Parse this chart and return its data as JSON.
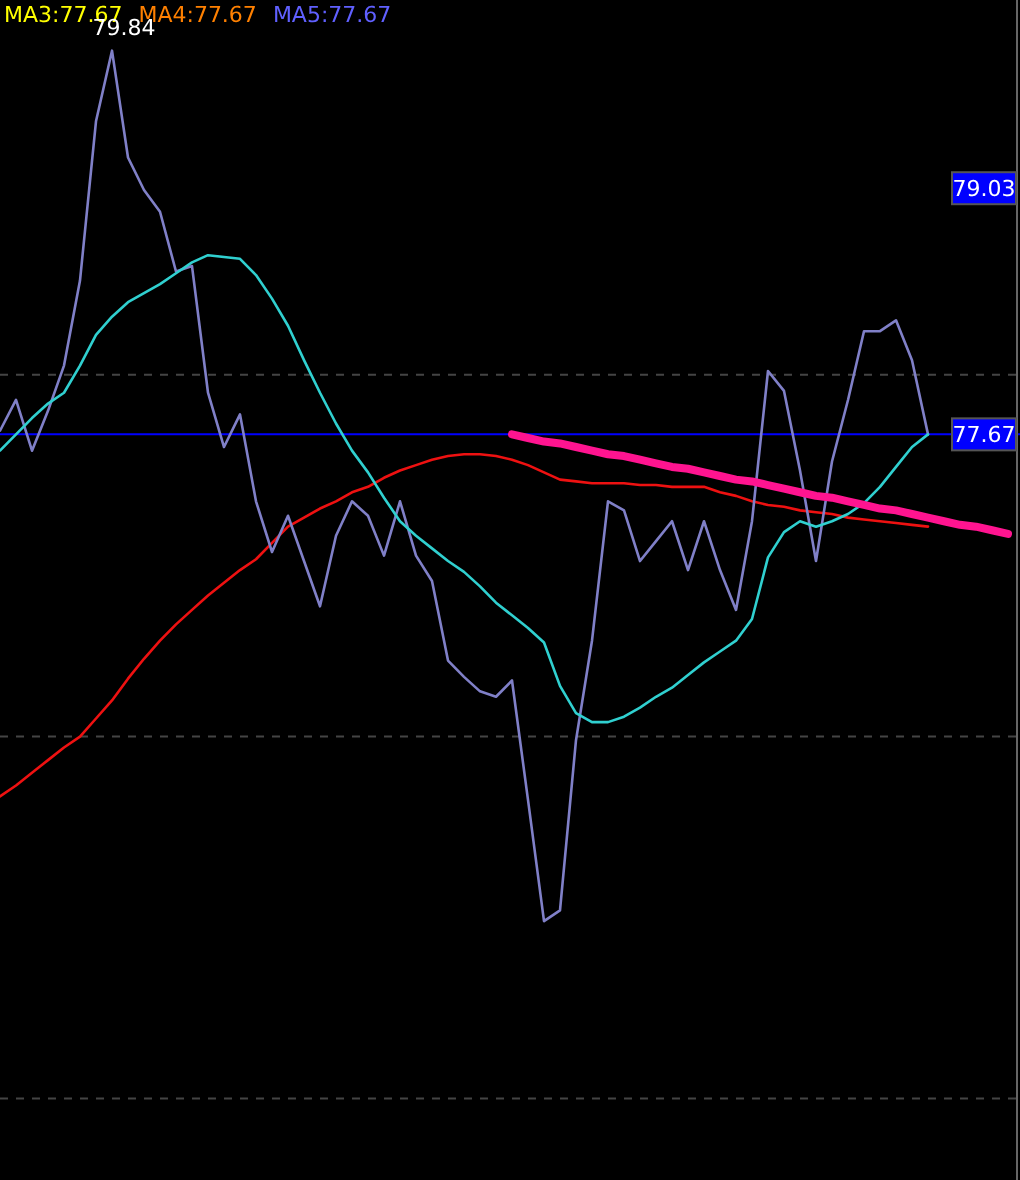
{
  "chart_data": {
    "type": "line",
    "categories": [
      null,
      null,
      null,
      null,
      null,
      null,
      null,
      null,
      null,
      null,
      null,
      null,
      null,
      null,
      null,
      null,
      null,
      null,
      null,
      null,
      null,
      null,
      null,
      null,
      null,
      null,
      null,
      null,
      null,
      null,
      null,
      null,
      null,
      null,
      null,
      null,
      null,
      null,
      null,
      null,
      null,
      null,
      null,
      null,
      null,
      null,
      null,
      null,
      null,
      null,
      null,
      null,
      null,
      null,
      null,
      null,
      null,
      null,
      null,
      null,
      null,
      null,
      null,
      null
    ],
    "ylim": [
      73.55,
      80.07
    ],
    "yticks": [
      79.03,
      77.67
    ],
    "tick_labels": "y",
    "marker": "none",
    "line_style": "solid",
    "annotations": [
      "MA3:77.67",
      "MA4:77.67",
      "MA5:77.67",
      "79.84"
    ],
    "ref_lines": [
      {
        "axis": "y",
        "value": 77.67,
        "color": "#0000ff",
        "line_style": "solid"
      },
      {
        "axis": "y",
        "value": 78,
        "color": "#444444",
        "line_style": "dashed"
      },
      {
        "axis": "y",
        "value": 76,
        "color": "#444444",
        "line_style": "dashed"
      },
      {
        "axis": "y",
        "value": 74,
        "color": "#444444",
        "line_style": "dashed"
      }
    ],
    "series": [
      {
        "color": "#ee1111",
        "values": [
          75.67,
          75.73,
          75.8,
          75.87,
          75.94,
          76.0,
          76.1,
          76.2,
          76.32,
          76.43,
          76.53,
          76.62,
          76.7,
          76.78,
          76.85,
          76.92,
          76.98,
          77.07,
          77.16,
          77.21,
          77.26,
          77.3,
          77.35,
          77.38,
          77.43,
          77.47,
          77.5,
          77.53,
          77.55,
          77.56,
          77.56,
          77.55,
          77.53,
          77.5,
          77.46,
          77.42,
          77.41,
          77.4,
          77.4,
          77.4,
          77.39,
          77.39,
          77.38,
          77.38,
          77.38,
          77.35,
          77.33,
          77.3,
          77.28,
          77.27,
          77.25,
          77.24,
          77.23,
          77.21,
          77.2,
          77.19,
          77.18,
          77.17,
          77.16,
          null,
          null,
          null,
          null,
          null
        ]
      },
      {
        "color": "#8080c8",
        "values": [
          77.69,
          77.86,
          77.58,
          77.8,
          78.05,
          78.52,
          79.4,
          79.79,
          79.2,
          79.02,
          78.9,
          78.57,
          78.6,
          77.9,
          77.6,
          77.78,
          77.3,
          77.02,
          77.22,
          76.97,
          76.72,
          77.11,
          77.3,
          77.22,
          77.0,
          77.3,
          77.0,
          76.86,
          76.42,
          76.33,
          76.25,
          76.22,
          76.31,
          75.65,
          74.98,
          75.04,
          75.98,
          76.53,
          77.3,
          77.25,
          76.97,
          77.08,
          77.19,
          76.92,
          77.19,
          76.92,
          76.7,
          77.19,
          78.02,
          77.91,
          77.47,
          76.97,
          77.52,
          77.86,
          78.24,
          78.24,
          78.3,
          78.08,
          77.67,
          null,
          null,
          null,
          null,
          null
        ]
      },
      {
        "color": "#30d0d0",
        "values": [
          77.58,
          77.67,
          77.76,
          77.84,
          77.9,
          78.05,
          78.22,
          78.32,
          78.4,
          78.45,
          78.5,
          78.56,
          78.62,
          78.66,
          78.65,
          78.64,
          78.55,
          78.42,
          78.27,
          78.08,
          77.9,
          77.73,
          77.58,
          77.46,
          77.32,
          77.19,
          77.11,
          77.04,
          76.97,
          76.91,
          76.83,
          76.74,
          76.67,
          76.6,
          76.52,
          76.28,
          76.13,
          76.08,
          76.08,
          76.11,
          76.16,
          76.22,
          76.27,
          76.34,
          76.41,
          76.47,
          76.53,
          76.65,
          76.99,
          77.13,
          77.19,
          77.16,
          77.19,
          77.23,
          77.29,
          77.38,
          77.49,
          77.6,
          77.67,
          null,
          null,
          null,
          null,
          null
        ]
      },
      {
        "color": "#ff1490",
        "values": [
          null,
          null,
          null,
          null,
          null,
          null,
          null,
          null,
          null,
          null,
          null,
          null,
          null,
          null,
          null,
          null,
          null,
          null,
          null,
          null,
          null,
          null,
          null,
          null,
          null,
          null,
          null,
          null,
          null,
          null,
          null,
          null,
          77.67,
          77.65,
          77.63,
          77.62,
          77.6,
          77.58,
          77.56,
          77.55,
          77.53,
          77.51,
          77.49,
          77.48,
          77.46,
          77.44,
          77.42,
          77.41,
          77.39,
          77.37,
          77.35,
          77.33,
          77.32,
          77.3,
          77.28,
          77.26,
          77.25,
          77.23,
          77.21,
          77.19,
          77.17,
          77.16,
          77.14,
          77.12
        ]
      }
    ]
  }
}
